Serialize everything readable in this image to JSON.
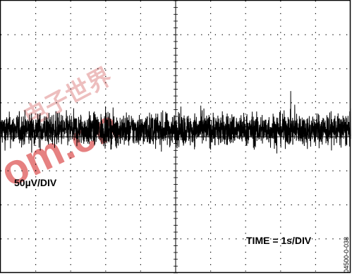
{
  "chart_data": {
    "type": "line",
    "title": "",
    "xlabel": "",
    "ylabel": "",
    "grid": true,
    "grid_divisions": {
      "x": 10,
      "y": 8
    },
    "volts_per_div_label": "50µV/DIV",
    "time_per_div_label": "TIME = 1s/DIV",
    "volts_per_div_uV": 50,
    "time_per_div_s": 1,
    "series": [
      {
        "x_range_s": [
          0,
          10
        ],
        "center_uV": 0,
        "noise_peak_to_peak_uV": 70,
        "occasional_spike_peak_to_peak_uV": 120,
        "description_note": "random noise"
      }
    ]
  },
  "figure_id": "04500-0-038",
  "watermark": {
    "text_chinese": "电子世界",
    "text_latin": "om.cn"
  }
}
